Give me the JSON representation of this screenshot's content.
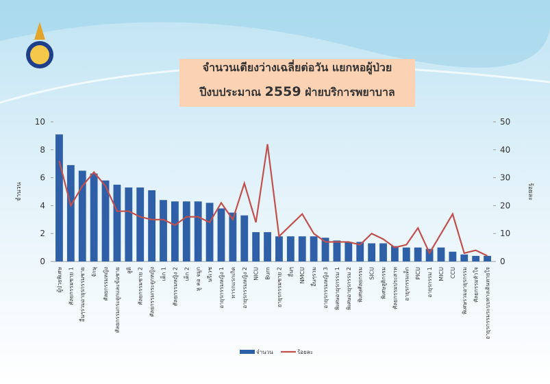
{
  "chart_data": {
    "type": "bar-line",
    "title_lines": [
      [
        "จำนวนเตียงว่างเฉลี่ยต่อวัน แยกหอผู้ป่วย"
      ],
      [
        "ปีงบประมาณ ",
        "2559",
        " ฝ่ายบริการพยาบาล"
      ]
    ],
    "y_label": "จำนวน",
    "y2_label": "ร้อยละ",
    "categories": [
      "ผู้ป่วยพิเศษ",
      "ศัลยกรรมชาย 1",
      "อื่นๆรวมอายุรกรรมชาย",
      "จักษุ",
      "ศัลยกรรมหญิง",
      "ศัลยกรรมกระดูกและข้อชาย",
      "สูติ",
      "ศัลยกรรมชาย 2",
      "ศัลยกรรมกระดูกหญิง",
      "เด็ก 1",
      "ศัลยกรรมหญิง 2",
      "เด็ก 2",
      "หู คอ จมูก",
      "นรีเวช",
      "อายุรกรรมหญิง 1",
      "ทารกแรกเกิด",
      "อายุรกรรมหญิง 2",
      "NICU",
      "Burn",
      "อายุรกรรมชาย 2",
      "อื่นๆ",
      "NMCU",
      "อื่นๆรวม",
      "อายุรกรรมหญิง 3",
      "พิเศษอายุรกรรม 1",
      "พิเศษอายุรกรรม 2",
      "พิเศษศัลยกรรม",
      "SICU",
      "พิเศษสูติกรรม",
      "ศัลยกรรมประสาท",
      "อายุรกรรมเด็ก",
      "PICU",
      "อายุรกรรม 1",
      "MICU",
      "CCU",
      "พิเศษรวมอายุรกรรม",
      "ศัลยกรรมหัวใจ",
      "อายุรกรรมระบบทางเดินหายใจ"
    ],
    "series": [
      {
        "name": "จำนวน",
        "color": "#2f5fa6",
        "values": [
          9.1,
          6.9,
          6.5,
          6.3,
          5.8,
          5.5,
          5.3,
          5.3,
          5.1,
          4.4,
          4.3,
          4.3,
          4.3,
          4.2,
          3.8,
          3.5,
          3.3,
          2.1,
          2.1,
          1.8,
          1.8,
          1.8,
          1.8,
          1.7,
          1.5,
          1.4,
          1.4,
          1.3,
          1.3,
          1.1,
          1.0,
          1.0,
          0.9,
          1.0,
          0.7,
          0.5,
          0.4,
          0.4
        ]
      },
      {
        "name": "ร้อยละ",
        "color": "#c0504d",
        "axis": "y2",
        "values": [
          36,
          20,
          27,
          32,
          27,
          18,
          18,
          16,
          15,
          15,
          13,
          16,
          16,
          14,
          21,
          15,
          28,
          14,
          42,
          9,
          13,
          17,
          10,
          7,
          7,
          7,
          6,
          10,
          8,
          5,
          6,
          12,
          3,
          10,
          17,
          3,
          4,
          2
        ]
      }
    ],
    "ylim": [
      0,
      10
    ],
    "yticks": [
      0,
      2,
      4,
      6,
      8,
      10
    ],
    "y2lim": [
      0,
      50
    ],
    "y2ticks": [
      0,
      10,
      20,
      30,
      40,
      50
    ]
  }
}
